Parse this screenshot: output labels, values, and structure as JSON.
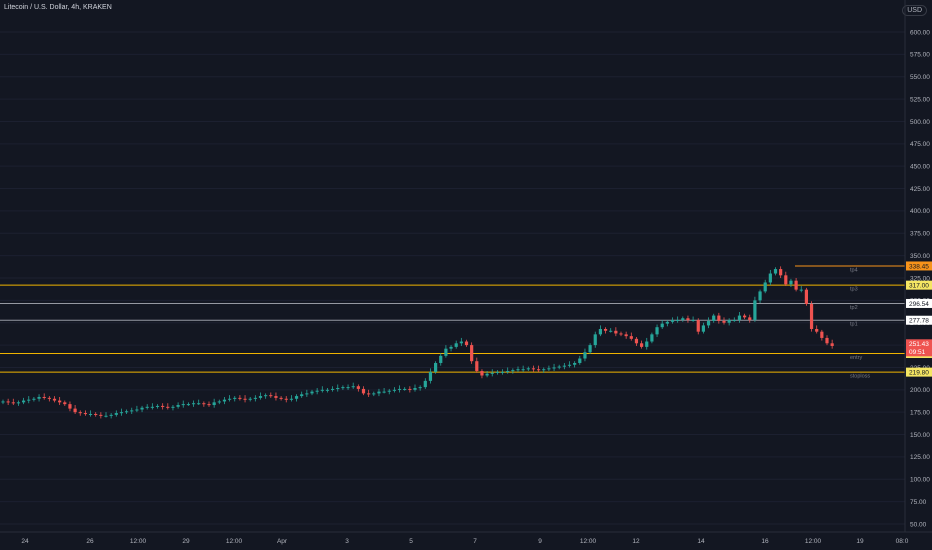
{
  "header": {
    "symbol": "Litecoin / U.S. Dollar, 4h, KRAKEN",
    "currency_label": "USD"
  },
  "colors": {
    "background": "#131722",
    "up": "#26a69a",
    "down": "#ef5350",
    "level_line": "#d1d4dc",
    "gold": "#f0b400",
    "orange": "#f7931a"
  },
  "chart_data": {
    "type": "candlestick",
    "title": "Litecoin / U.S. Dollar, 4h, KRAKEN",
    "ylim": [
      40,
      625
    ],
    "y_ticks": [
      "600.00",
      "575.00",
      "550.00",
      "525.00",
      "500.00",
      "475.00",
      "450.00",
      "425.00",
      "400.00",
      "375.00",
      "350.00",
      "325.00",
      "300.00",
      "275.00",
      "250.00",
      "225.00",
      "200.00",
      "175.00",
      "150.00",
      "125.00",
      "100.00",
      "75.00",
      "50.00"
    ],
    "x_ticks": [
      "24",
      "26",
      "12:00",
      "29",
      "12:00",
      "Apr",
      "3",
      "5",
      "7",
      "9",
      "12:00",
      "12",
      "14",
      "16",
      "12:00",
      "19",
      "08:0"
    ],
    "close_series": [
      187,
      186,
      185,
      186,
      188,
      189,
      190,
      192,
      191,
      190,
      188,
      186,
      184,
      179,
      175,
      174,
      173,
      173,
      172,
      171,
      171,
      172,
      174,
      175,
      176,
      177,
      178,
      180,
      181,
      181,
      182,
      181,
      180,
      181,
      183,
      184,
      184,
      185,
      185,
      184,
      183,
      186,
      187,
      189,
      190,
      191,
      190,
      189,
      190,
      191,
      193,
      194,
      193,
      191,
      190,
      189,
      190,
      193,
      195,
      196,
      198,
      199,
      200,
      200,
      201,
      202,
      203,
      203,
      204,
      201,
      196,
      195,
      196,
      198,
      198,
      199,
      200,
      201,
      201,
      200,
      202,
      203,
      210,
      220,
      230,
      238,
      246,
      248,
      252,
      254,
      250,
      232,
      221,
      216,
      218,
      219,
      220,
      220,
      221,
      222,
      223,
      223,
      224,
      223,
      222,
      223,
      224,
      225,
      226,
      227,
      228,
      230,
      235,
      242,
      250,
      262,
      268,
      266,
      266,
      263,
      262,
      260,
      257,
      252,
      248,
      254,
      262,
      270,
      274,
      276,
      278,
      278,
      280,
      278,
      278,
      265,
      272,
      277,
      283,
      277,
      275,
      278,
      278,
      283,
      281,
      278,
      300,
      310,
      320,
      330,
      335,
      328,
      318,
      322,
      312,
      312,
      296,
      268,
      265,
      258,
      252,
      249
    ]
  },
  "price_axis": {
    "current_price": "251.43",
    "countdown": "09:51",
    "levels": [
      {
        "label": "tp4",
        "price": "338.45",
        "value": 338.45,
        "kind": "orange"
      },
      {
        "label": "",
        "price": "325.00",
        "value": 325.0,
        "kind": "plain"
      },
      {
        "label": "tp3",
        "price": "317.00",
        "value": 317.0,
        "kind": "gold"
      },
      {
        "label": "tp2",
        "price": "296.54",
        "value": 296.54,
        "kind": "white"
      },
      {
        "label": "tp1",
        "price": "277.78",
        "value": 277.78,
        "kind": "white"
      },
      {
        "label": "entry",
        "price": "240.61",
        "value": 240.61,
        "kind": "gold"
      },
      {
        "label": "stoploss",
        "price": "219.80",
        "value": 219.8,
        "kind": "gold"
      }
    ]
  }
}
